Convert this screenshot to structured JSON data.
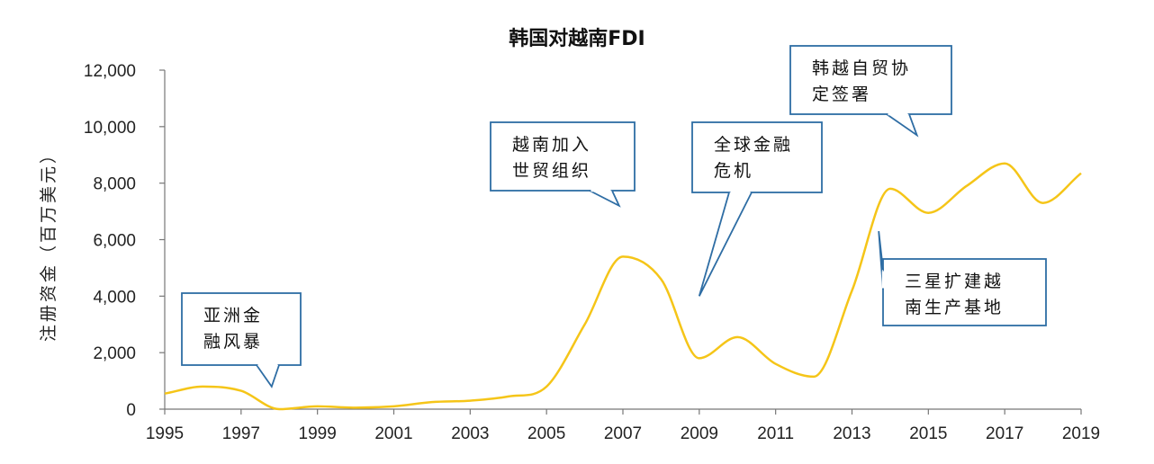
{
  "chart_data": {
    "type": "line",
    "title": "韩国对越南FDI",
    "xlabel": "",
    "ylabel": "注册资金（百万美元）",
    "xlim": [
      1995,
      2019
    ],
    "ylim": [
      0,
      12000
    ],
    "x_ticks": [
      "1995",
      "1997",
      "1999",
      "2001",
      "2003",
      "2005",
      "2007",
      "2009",
      "2011",
      "2013",
      "2015",
      "2017",
      "2019"
    ],
    "y_ticks": [
      "0",
      "2,000",
      "4,000",
      "6,000",
      "8,000",
      "10,000",
      "12,000"
    ],
    "grid": false,
    "legend": "none",
    "line_color": "#F5C518",
    "series": [
      {
        "x": [
          1995,
          1996,
          1997,
          1998,
          1999,
          2000,
          2001,
          2002,
          2003,
          2004,
          2005,
          2006,
          2007,
          2008,
          2009,
          2010,
          2011,
          2012,
          2013,
          2014,
          2015,
          2016,
          2017,
          2018,
          2019
        ],
        "values": [
          550,
          800,
          650,
          0,
          100,
          50,
          100,
          250,
          300,
          450,
          800,
          3000,
          5400,
          4600,
          1800,
          2550,
          1600,
          1150,
          4200,
          7800,
          6950,
          7900,
          8700,
          7300,
          8350
        ]
      }
    ],
    "annotations": [
      {
        "lines": [
          "亚洲金",
          "融风暴"
        ],
        "pointer_x": 1997.8,
        "pointer_y": 800
      },
      {
        "lines": [
          "越南加入",
          "世贸组织"
        ],
        "pointer_x": 2006.9,
        "pointer_y": 7200
      },
      {
        "lines": [
          "全球金融",
          "危机"
        ],
        "pointer_x": 2009.0,
        "pointer_y": 4000
      },
      {
        "lines": [
          "韩越自贸协",
          "定签署"
        ],
        "pointer_x": 2014.7,
        "pointer_y": 9700
      },
      {
        "lines": [
          "三星扩建越",
          "南生产基地"
        ],
        "pointer_x": 2013.7,
        "pointer_y": 6300
      }
    ]
  }
}
